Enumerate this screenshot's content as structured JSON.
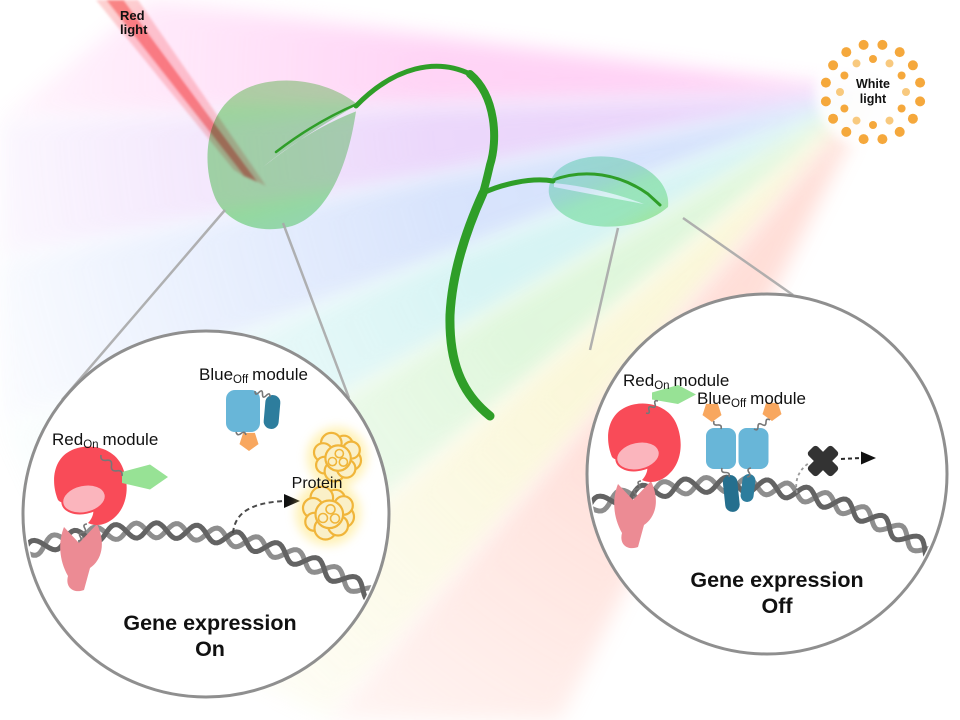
{
  "lights": {
    "red": {
      "line1": "Red",
      "line2": "light"
    },
    "white": {
      "line1": "White",
      "line2": "light"
    }
  },
  "panel_on": {
    "red_module": {
      "base": "Red",
      "sub": "On",
      "rest": "module"
    },
    "blue_module": {
      "base": "Blue",
      "sub": "Off",
      "rest": "module"
    },
    "protein": "Protein",
    "caption": {
      "line1": "Gene expression",
      "line2": "On"
    }
  },
  "panel_off": {
    "red_module": {
      "base": "Red",
      "sub": "On",
      "rest": "module"
    },
    "blue_module": {
      "base": "Blue",
      "sub": "Off",
      "rest": "module"
    },
    "caption": {
      "line1": "Gene expression",
      "line2": "Off"
    }
  },
  "colors": {
    "text": "#111111",
    "red_beam": "#f87070",
    "red_beam_soft": "#fba3a3",
    "red_blob": "#f94b58",
    "pink_inner": "#fbb5bd",
    "ribbon": "#ec8b94",
    "green_tag": "#97e295",
    "leaf": "#8ade85",
    "leaf2_a": "#8fe8c2",
    "leaf2_b": "#95e28c",
    "stem": "#2f9e28",
    "light_blue": "#68b6d8",
    "teal": "#2d7d9d",
    "teal_dark": "#256f8e",
    "orange": "#f8a75f",
    "protein_fill": "#faf0c8",
    "protein_stroke": "#f0b53a",
    "protein_glow": "#ffe46e",
    "dna_dark": "#636363",
    "dna_light": "#8e8e8e",
    "circle_stroke": "#8f8f8f",
    "magnifier_line": "#a9a9a9",
    "sun_dot": "#f5a83c",
    "sun_dot_light": "#f8c97e",
    "x_mark": "#333333",
    "dash_arrow": "#4a4a4a",
    "fan_pink": "#ff96e8",
    "fan_violet": "#cf9ef5",
    "fan_blue": "#9fbcf8",
    "fan_cyan": "#9de4e4",
    "fan_green": "#b4ebac",
    "fan_yellow": "#f4eca6",
    "fan_red": "#ffb3a4"
  }
}
